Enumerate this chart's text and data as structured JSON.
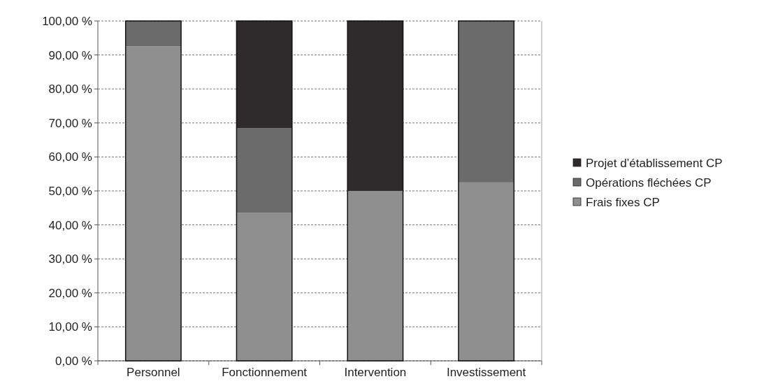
{
  "chart_data": {
    "type": "bar",
    "stacked": true,
    "categories": [
      "Personnel",
      "Fonctionnement",
      "Intervention",
      "Investissement"
    ],
    "series": [
      {
        "name": "Frais fixes CP",
        "color": "#8f8f8f",
        "values": [
          92.5,
          43.5,
          50,
          52.5
        ]
      },
      {
        "name": "Opérations fléchées CP",
        "color": "#6b6b6b",
        "values": [
          7.5,
          25,
          0,
          47.5
        ]
      },
      {
        "name": "Projet d’établissement CP",
        "color": "#2f2b2d",
        "values": [
          0,
          31.5,
          50,
          0
        ]
      }
    ],
    "ylim": [
      0,
      100
    ],
    "yticks": [
      {
        "value": 0,
        "label": "0,00 %"
      },
      {
        "value": 10,
        "label": "10,00 %"
      },
      {
        "value": 20,
        "label": "20,00 %"
      },
      {
        "value": 30,
        "label": "30,00 %"
      },
      {
        "value": 40,
        "label": "40,00 %"
      },
      {
        "value": 50,
        "label": "50,00 %"
      },
      {
        "value": 60,
        "label": "60,00 %"
      },
      {
        "value": 70,
        "label": "70,00 %"
      },
      {
        "value": 80,
        "label": "80,00 %"
      },
      {
        "value": 90,
        "label": "90,00 %"
      },
      {
        "value": 100,
        "label": "100,00 %"
      }
    ],
    "grid": "y",
    "legend": "right"
  }
}
